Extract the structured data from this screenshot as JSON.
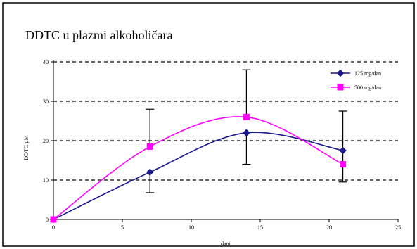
{
  "chart_data": {
    "type": "line",
    "title": "DDTC u plazmi alkoholičara",
    "xlabel": "dani",
    "ylabel": "DDTC µM",
    "xlim": [
      0,
      25
    ],
    "ylim": [
      0,
      40
    ],
    "x_ticks": [
      0,
      5,
      10,
      15,
      20,
      25
    ],
    "y_ticks": [
      0,
      10,
      20,
      30,
      40
    ],
    "grid": "horizontal-dashed",
    "legend_position": "top-right",
    "series": [
      {
        "name": "125 mg/dan",
        "color": "#1a1a8c",
        "marker": "diamond",
        "x": [
          0,
          7,
          14,
          21
        ],
        "y": [
          0,
          12,
          22,
          17.5
        ],
        "err_low": [
          null,
          6.8,
          14,
          9.5
        ],
        "err_high": [
          null,
          null,
          null,
          27.5
        ]
      },
      {
        "name": "500 mg/dan",
        "color": "#ff00ff",
        "marker": "square",
        "x": [
          0,
          7,
          14,
          21
        ],
        "y": [
          0,
          18.5,
          26,
          14
        ],
        "err_low": [
          null,
          null,
          null,
          null
        ],
        "err_high": [
          null,
          28,
          38,
          null
        ]
      }
    ]
  }
}
